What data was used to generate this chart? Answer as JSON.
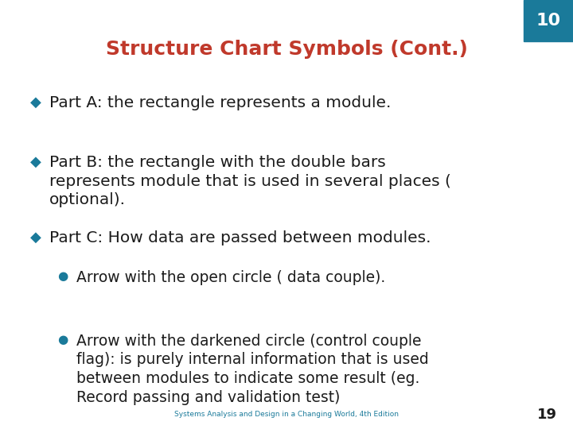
{
  "title": "Structure Chart Symbols (Cont.)",
  "title_color": "#C0392B",
  "title_fontsize": 18,
  "slide_number": "10",
  "page_number": "19",
  "header_box_color": "#1A7A9A",
  "bullet_color": "#1A7A9A",
  "sub_bullet_color": "#1A7A9A",
  "text_color": "#1C1C1C",
  "footer_color": "#1A7A9A",
  "bullet_char": "◆",
  "sub_bullet_char": "●",
  "items": [
    {
      "level": 0,
      "text": "Part A: the rectangle represents a module."
    },
    {
      "level": 0,
      "text": "Part B: the rectangle with the double bars\nrepresents module that is used in several places (\noptional)."
    },
    {
      "level": 0,
      "text": "Part C: How data are passed between modules."
    },
    {
      "level": 1,
      "text": "Arrow with the open circle ( data couple)."
    },
    {
      "level": 1,
      "text": "Arrow with the darkened circle (control couple\nflag): is purely internal information that is used\nbetween modules to indicate some result (eg.\nRecord passing and validation test)"
    }
  ],
  "footer_text": "Systems Analysis and Design in a Changing World, 4th Edition"
}
